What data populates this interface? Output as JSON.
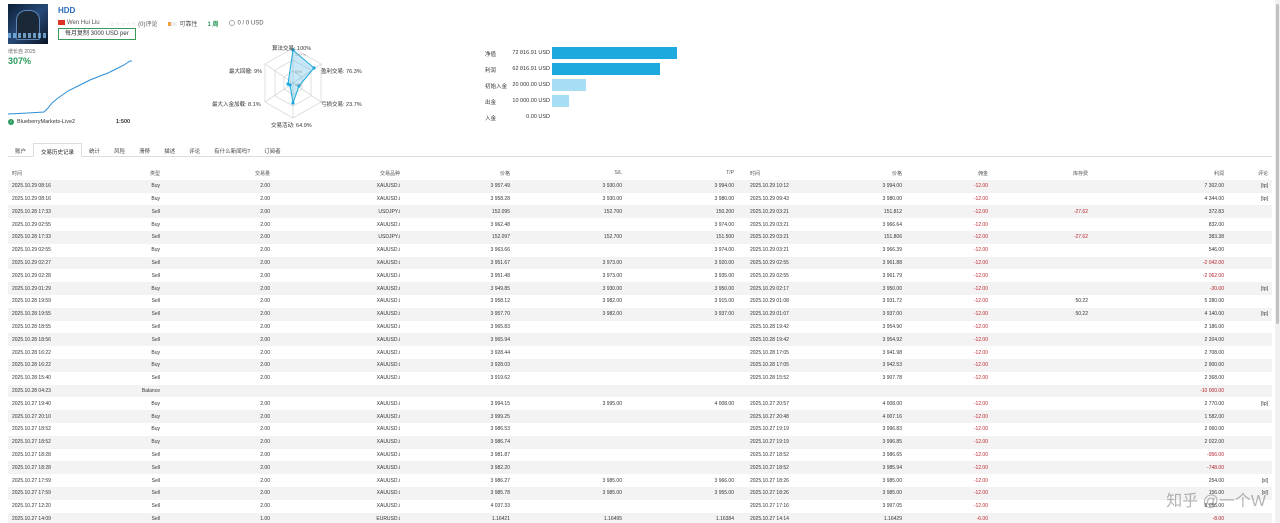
{
  "header": {
    "title": "HDD",
    "author": "Wen Hui Liu",
    "stars": "☆☆☆☆☆",
    "reviews": "(0)评论",
    "reliability": "可靠性",
    "weeks": "1 周",
    "subscribers": "0 / 0 USD",
    "subscribe_button": "每月复制 3000 USD per"
  },
  "growth": {
    "label": "增长自 2025",
    "value": "307%",
    "broker": "BlueberryMarkets-Live2",
    "leverage": "1:500"
  },
  "radar": {
    "top": "算法交易: 100%",
    "top_right": "盈利交易: 76.3%",
    "bottom_right": "亏损交易: 23.7%",
    "bottom": "交易活动: 64.9%",
    "bottom_left": "最大入金加载: 8.1%",
    "top_left": "最大回撤: 9%",
    "inner_100": "100+%",
    "inner_60": "60%",
    "inner_30": "30%"
  },
  "bars": [
    {
      "label": "净值",
      "value": "72 816.91 USD",
      "amount": 72816.91,
      "color": "#1ea9de"
    },
    {
      "label": "利润",
      "value": "62 816.91 USD",
      "amount": 62816.91,
      "color": "#1ea9de"
    },
    {
      "label": "初始入金",
      "value": "20 000.00 USD",
      "amount": 20000,
      "color": "#a8def3"
    },
    {
      "label": "出金",
      "value": "10 000.00 USD",
      "amount": 10000,
      "color": "#a8def3"
    },
    {
      "label": "入金",
      "value": "0.00 USD",
      "amount": 0,
      "color": "#a8def3"
    }
  ],
  "tabs": [
    "账户",
    "交易历史记录",
    "统计",
    "风险",
    "滑移",
    "描述",
    "评论",
    "有什么新闻吗?",
    "订阅者"
  ],
  "active_tab": 1,
  "table": {
    "headers": [
      "时间",
      "类型",
      "交易量",
      "交易品种",
      "价格",
      "S/L",
      "T/P",
      "时间",
      "价格",
      "佣金",
      "库存费",
      "利润",
      "评论"
    ],
    "rows": [
      [
        "2025.10.29 08:16",
        "Buy",
        "2.00",
        "XAUUSD.i",
        "3 957.49",
        "3 930.00",
        "3 994.00",
        "2025.10.29 10:12",
        "3 994.00",
        "-12.00",
        "",
        "7 302.00",
        "[tp]"
      ],
      [
        "2025.10.29 08:16",
        "Buy",
        "2.00",
        "XAUUSD.i",
        "3 958.28",
        "3 930.00",
        "3 980.00",
        "2025.10.29 09:43",
        "3 980.00",
        "-12.00",
        "",
        "4 344.00",
        "[tp]"
      ],
      [
        "2025.10.28 17:33",
        "Sell",
        "2.00",
        "USDJPY.i",
        "152.095",
        "152.700",
        "150.200",
        "2025.10.29 03:21",
        "151.812",
        "-12.00",
        "-27.62",
        "372.83",
        ""
      ],
      [
        "2025.10.29 02:55",
        "Buy",
        "2.00",
        "XAUUSD.i",
        "3 962.48",
        "",
        "3 974.00",
        "2025.10.29 03:21",
        "3 966.64",
        "-12.00",
        "",
        "832.00",
        ""
      ],
      [
        "2025.10.28 17:33",
        "Sell",
        "2.00",
        "USDJPY.i",
        "152.097",
        "152.700",
        "151.500",
        "2025.10.29 03:21",
        "151.806",
        "-12.00",
        "-27.62",
        "383.38",
        ""
      ],
      [
        "2025.10.29 02:55",
        "Buy",
        "2.00",
        "XAUUSD.i",
        "3 963.66",
        "",
        "3 974.00",
        "2025.10.29 03:21",
        "3 966.39",
        "-12.00",
        "",
        "546.00",
        ""
      ],
      [
        "2025.10.29 02:27",
        "Sell",
        "2.00",
        "XAUUSD.i",
        "3 951.67",
        "3 973.00",
        "3 920.00",
        "2025.10.29 02:55",
        "3 961.88",
        "-12.00",
        "",
        "-2 042.00",
        ""
      ],
      [
        "2025.10.29 02:28",
        "Sell",
        "2.00",
        "XAUUSD.i",
        "3 951.48",
        "3 973.00",
        "3 935.00",
        "2025.10.29 02:55",
        "3 961.79",
        "-12.00",
        "",
        "-2 062.00",
        ""
      ],
      [
        "2025.10.29 01:29",
        "Buy",
        "2.00",
        "XAUUSD.i",
        "3 949.85",
        "3 930.00",
        "3 950.00",
        "2025.10.29 02:17",
        "3 950.00",
        "-12.00",
        "",
        "-30.00",
        "[tp]"
      ],
      [
        "2025.10.28 19:59",
        "Sell",
        "2.00",
        "XAUUSD.i",
        "3 958.12",
        "3 982.00",
        "3 915.00",
        "2025.10.29 01:08",
        "3 931.72",
        "-12.00",
        "50.22",
        "5 280.00",
        ""
      ],
      [
        "2025.10.28 19:55",
        "Sell",
        "2.00",
        "XAUUSD.i",
        "3 957.70",
        "3 982.00",
        "3 937.00",
        "2025.10.29 01:07",
        "3 937.00",
        "-12.00",
        "50.22",
        "4 140.00",
        "[tp]"
      ],
      [
        "2025.10.28 18:55",
        "Sell",
        "2.00",
        "XAUUSD.i",
        "3 965.83",
        "",
        "",
        "2025.10.28 19:42",
        "3 954.90",
        "-12.00",
        "",
        "2 186.00",
        ""
      ],
      [
        "2025.10.28 18:56",
        "Sell",
        "2.00",
        "XAUUSD.i",
        "3 965.94",
        "",
        "",
        "2025.10.28 19:42",
        "3 954.92",
        "-12.00",
        "",
        "2 204.00",
        ""
      ],
      [
        "2025.10.28 16:22",
        "Buy",
        "2.00",
        "XAUUSD.i",
        "3 928.44",
        "",
        "",
        "2025.10.28 17:05",
        "3 941.98",
        "-12.00",
        "",
        "2 708.00",
        ""
      ],
      [
        "2025.10.28 16:22",
        "Buy",
        "2.00",
        "XAUUSD.i",
        "3 928.03",
        "",
        "",
        "2025.10.28 17:05",
        "3 942.53",
        "-12.00",
        "",
        "2 900.00",
        ""
      ],
      [
        "2025.10.28 15:40",
        "Sell",
        "2.00",
        "XAUUSD.i",
        "3 919.62",
        "",
        "",
        "2025.10.28 15:52",
        "3 907.78",
        "-12.00",
        "",
        "2 368.00",
        ""
      ],
      [
        "2025.10.28 04:23",
        "Balance",
        "",
        "",
        "",
        "",
        "",
        "",
        "",
        "",
        "",
        "-10 000.00",
        ""
      ],
      [
        "2025.10.27 19:40",
        "Buy",
        "2.00",
        "XAUUSD.i",
        "3 994.15",
        "3 995.00",
        "4 008.00",
        "2025.10.27 20:57",
        "4 008.00",
        "-12.00",
        "",
        "2 770.00",
        "[tp]"
      ],
      [
        "2025.10.27 20:10",
        "Buy",
        "2.00",
        "XAUUSD.i",
        "3 999.25",
        "",
        "",
        "2025.10.27 20:48",
        "4 007.16",
        "-12.00",
        "",
        "1 582.00",
        ""
      ],
      [
        "2025.10.27 18:52",
        "Buy",
        "2.00",
        "XAUUSD.i",
        "3 986.53",
        "",
        "",
        "2025.10.27 19:19",
        "3 996.83",
        "-12.00",
        "",
        "2 060.00",
        ""
      ],
      [
        "2025.10.27 18:52",
        "Buy",
        "2.00",
        "XAUUSD.i",
        "3 986.74",
        "",
        "",
        "2025.10.27 19:19",
        "3 996.85",
        "-12.00",
        "",
        "2 022.00",
        ""
      ],
      [
        "2025.10.27 18:28",
        "Sell",
        "2.00",
        "XAUUSD.i",
        "3 981.87",
        "",
        "",
        "2025.10.27 18:52",
        "3 986.65",
        "-12.00",
        "",
        "-956.00",
        ""
      ],
      [
        "2025.10.27 18:28",
        "Sell",
        "2.00",
        "XAUUSD.i",
        "3 982.20",
        "",
        "",
        "2025.10.27 18:52",
        "3 985.94",
        "-12.00",
        "",
        "-748.00",
        ""
      ],
      [
        "2025.10.27 17:59",
        "Sell",
        "2.00",
        "XAUUSD.i",
        "3 986.27",
        "3 985.00",
        "3 966.00",
        "2025.10.27 18:26",
        "3 985.00",
        "-12.00",
        "",
        "254.00",
        "[sl]"
      ],
      [
        "2025.10.27 17:59",
        "Sell",
        "2.00",
        "XAUUSD.i",
        "3 985.78",
        "3 985.00",
        "3 955.00",
        "2025.10.27 18:26",
        "3 985.00",
        "-12.00",
        "",
        "156.00",
        "[sl]"
      ],
      [
        "2025.10.27 12:20",
        "Sell",
        "2.00",
        "XAUUSD.i",
        "4 037.33",
        "",
        "",
        "2025.10.27 17:16",
        "3 997.05",
        "-12.00",
        "",
        "8 056.00",
        ""
      ],
      [
        "2025.10.27 14:09",
        "Sell",
        "1.00",
        "EURUSD.i",
        "1.16421",
        "1.16495",
        "1.16384",
        "2025.10.27 14:14",
        "1.16429",
        "-6.00",
        "",
        "-8.00",
        ""
      ]
    ]
  },
  "watermark": "知乎 @一个W"
}
